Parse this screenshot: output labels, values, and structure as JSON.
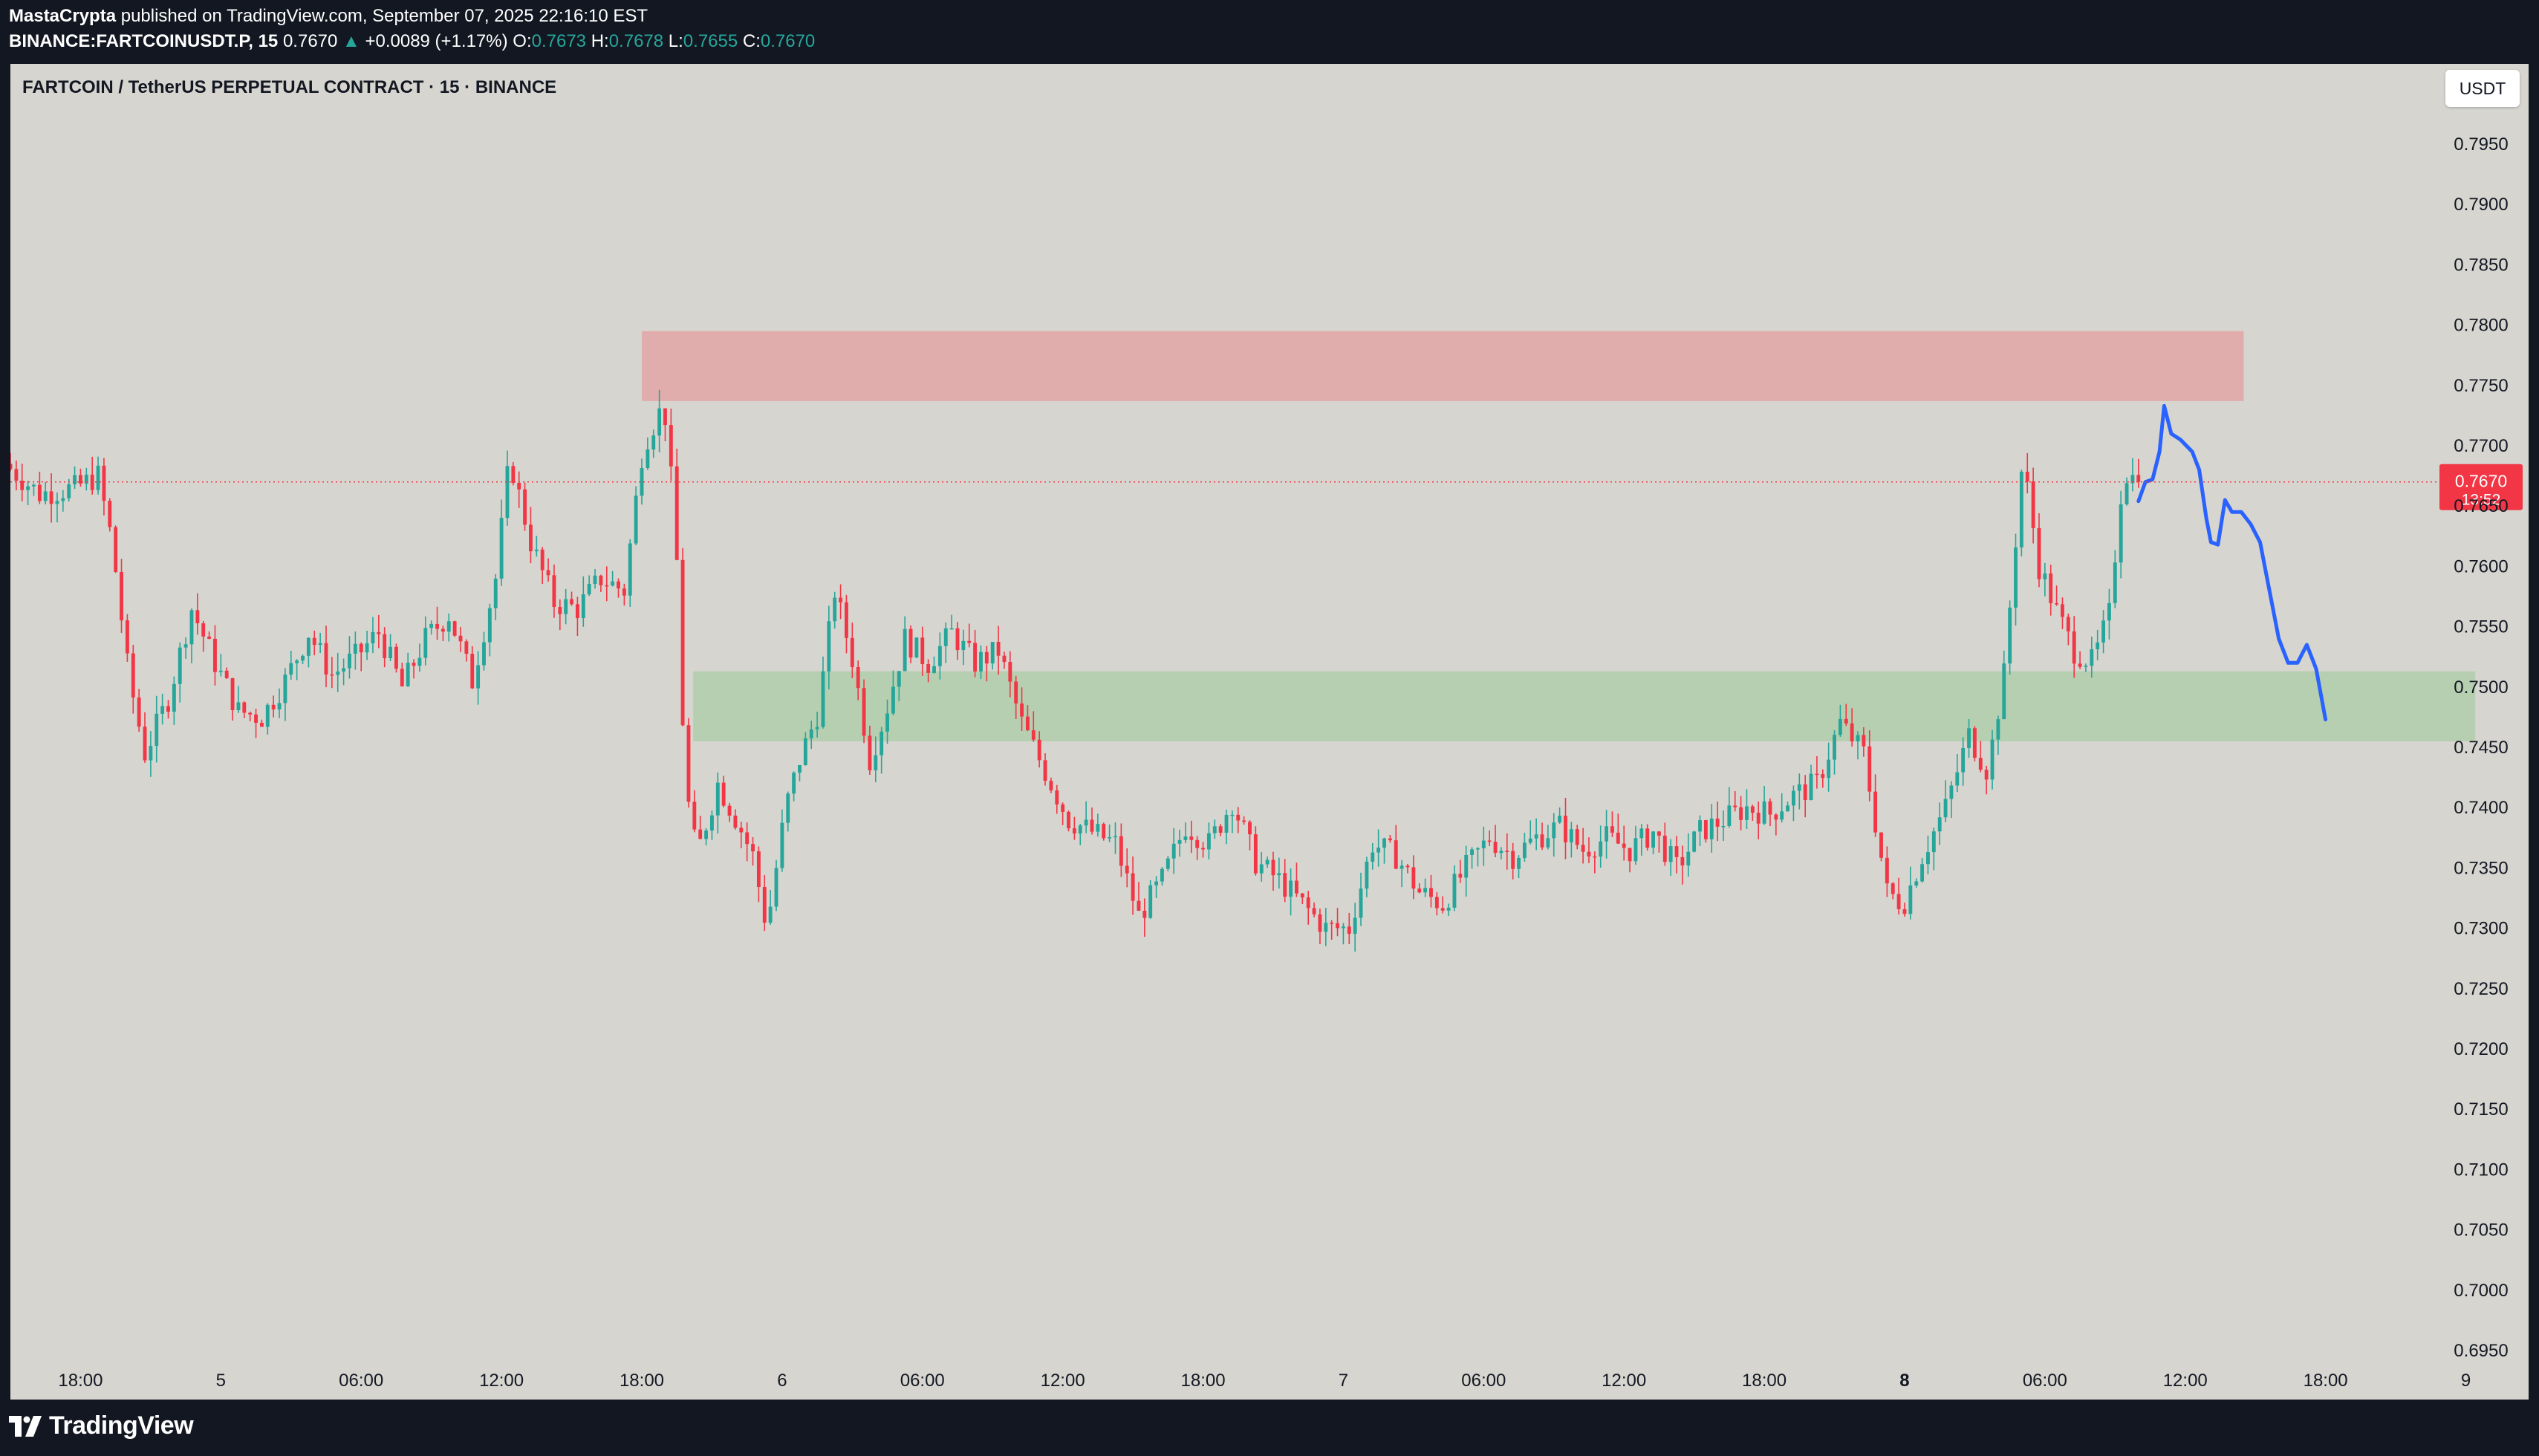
{
  "header": {
    "author": "MastaCrypta",
    "published_text": "published on TradingView.com, September 07, 2025 22:16:10 EST",
    "symbol_interval": "BINANCE:FARTCOINUSDT.P, 15",
    "last": "0.7670",
    "change": "+0.0089 (+1.17%)",
    "o_label": "O:",
    "o_value": "0.7673",
    "h_label": "H:",
    "h_value": "0.7678",
    "l_label": "L:",
    "l_value": "0.7655",
    "c_label": "C:",
    "c_value": "0.7670"
  },
  "chart_title": "FARTCOIN / TetherUS PERPETUAL CONTRACT · 15 · BINANCE",
  "currency_button": "USDT",
  "footer": {
    "brand": "TradingView"
  },
  "colors": {
    "up": "#26a69a",
    "down": "#f23645",
    "background": "#d6d5cf",
    "frame": "#131722",
    "resistance_zone": "#e1acac",
    "support_zone": "#b6cfb0",
    "projection": "#2962ff",
    "price_badge": "#f23645"
  },
  "chart_data": {
    "type": "candlestick",
    "title": "FARTCOIN / TetherUS PERPETUAL CONTRACT · 15 · BINANCE",
    "interval": "15",
    "y_ticks": [
      "0.7950",
      "0.7900",
      "0.7850",
      "0.7800",
      "0.7750",
      "0.7700",
      "0.7650",
      "0.7600",
      "0.7550",
      "0.7500",
      "0.7450",
      "0.7400",
      "0.7350",
      "0.7300",
      "0.7250",
      "0.7200",
      "0.7150",
      "0.7100",
      "0.7050",
      "0.7000",
      "0.6950"
    ],
    "ylim": [
      0.6925,
      0.798
    ],
    "x_range_hours": [
      -3,
      103
    ],
    "x_ticks": [
      {
        "h": 0,
        "label": "18:00",
        "bold": false
      },
      {
        "h": 6,
        "label": "5",
        "bold": false
      },
      {
        "h": 12,
        "label": "06:00",
        "bold": false
      },
      {
        "h": 18,
        "label": "12:00",
        "bold": false
      },
      {
        "h": 24,
        "label": "18:00",
        "bold": false
      },
      {
        "h": 30,
        "label": "6",
        "bold": false
      },
      {
        "h": 36,
        "label": "06:00",
        "bold": false
      },
      {
        "h": 42,
        "label": "12:00",
        "bold": false
      },
      {
        "h": 48,
        "label": "18:00",
        "bold": false
      },
      {
        "h": 54,
        "label": "7",
        "bold": false
      },
      {
        "h": 60,
        "label": "06:00",
        "bold": false
      },
      {
        "h": 66,
        "label": "12:00",
        "bold": false
      },
      {
        "h": 72,
        "label": "18:00",
        "bold": false
      },
      {
        "h": 78,
        "label": "8",
        "bold": true
      },
      {
        "h": 84,
        "label": "06:00",
        "bold": false
      },
      {
        "h": 90,
        "label": "12:00",
        "bold": false
      },
      {
        "h": 96,
        "label": "18:00",
        "bold": false
      },
      {
        "h": 102,
        "label": "9",
        "bold": false
      }
    ],
    "price_path": [
      [
        -3.0,
        0.7685
      ],
      [
        -1.5,
        0.766
      ],
      [
        0.0,
        0.7665
      ],
      [
        1.0,
        0.7675
      ],
      [
        1.6,
        0.762
      ],
      [
        2.3,
        0.751
      ],
      [
        3.0,
        0.7445
      ],
      [
        4.0,
        0.749
      ],
      [
        5.0,
        0.7565
      ],
      [
        6.0,
        0.752
      ],
      [
        7.0,
        0.748
      ],
      [
        8.0,
        0.7475
      ],
      [
        9.0,
        0.7505
      ],
      [
        10.0,
        0.7545
      ],
      [
        11.0,
        0.751
      ],
      [
        12.0,
        0.7525
      ],
      [
        13.0,
        0.7545
      ],
      [
        14.0,
        0.75
      ],
      [
        15.0,
        0.754
      ],
      [
        16.0,
        0.756
      ],
      [
        17.0,
        0.7505
      ],
      [
        18.0,
        0.759
      ],
      [
        18.6,
        0.769
      ],
      [
        19.5,
        0.762
      ],
      [
        20.5,
        0.757
      ],
      [
        21.5,
        0.7565
      ],
      [
        22.5,
        0.759
      ],
      [
        23.5,
        0.758
      ],
      [
        24.3,
        0.77
      ],
      [
        25.2,
        0.7735
      ],
      [
        25.7,
        0.763
      ],
      [
        26.1,
        0.742
      ],
      [
        26.6,
        0.736
      ],
      [
        27.5,
        0.742
      ],
      [
        28.3,
        0.739
      ],
      [
        29.0,
        0.736
      ],
      [
        29.6,
        0.73
      ],
      [
        30.4,
        0.74
      ],
      [
        31.0,
        0.744
      ],
      [
        31.8,
        0.748
      ],
      [
        32.5,
        0.758
      ],
      [
        33.3,
        0.752
      ],
      [
        34.0,
        0.744
      ],
      [
        34.7,
        0.748
      ],
      [
        35.5,
        0.754
      ],
      [
        36.5,
        0.752
      ],
      [
        37.5,
        0.7545
      ],
      [
        38.5,
        0.752
      ],
      [
        39.5,
        0.753
      ],
      [
        40.5,
        0.747
      ],
      [
        41.5,
        0.743
      ],
      [
        42.5,
        0.739
      ],
      [
        43.5,
        0.738
      ],
      [
        44.5,
        0.737
      ],
      [
        45.5,
        0.731
      ],
      [
        46.5,
        0.734
      ],
      [
        47.5,
        0.7385
      ],
      [
        48.5,
        0.737
      ],
      [
        49.5,
        0.7405
      ],
      [
        50.5,
        0.7355
      ],
      [
        51.5,
        0.734
      ],
      [
        52.5,
        0.732
      ],
      [
        53.5,
        0.73
      ],
      [
        54.5,
        0.73
      ],
      [
        55.5,
        0.737
      ],
      [
        56.5,
        0.736
      ],
      [
        57.5,
        0.733
      ],
      [
        58.5,
        0.732
      ],
      [
        59.5,
        0.735
      ],
      [
        60.5,
        0.7375
      ],
      [
        61.5,
        0.736
      ],
      [
        62.5,
        0.7375
      ],
      [
        63.5,
        0.7385
      ],
      [
        64.5,
        0.7365
      ],
      [
        65.5,
        0.7375
      ],
      [
        66.5,
        0.7365
      ],
      [
        67.5,
        0.738
      ],
      [
        68.5,
        0.735
      ],
      [
        69.5,
        0.738
      ],
      [
        70.5,
        0.739
      ],
      [
        71.5,
        0.74
      ],
      [
        72.5,
        0.7395
      ],
      [
        73.5,
        0.741
      ],
      [
        74.5,
        0.742
      ],
      [
        75.5,
        0.747
      ],
      [
        76.5,
        0.7445
      ],
      [
        77.5,
        0.733
      ],
      [
        78.2,
        0.732
      ],
      [
        79.0,
        0.736
      ],
      [
        80.0,
        0.74
      ],
      [
        81.0,
        0.746
      ],
      [
        81.8,
        0.743
      ],
      [
        82.5,
        0.751
      ],
      [
        83.3,
        0.769
      ],
      [
        84.0,
        0.76
      ],
      [
        84.8,
        0.756
      ],
      [
        85.5,
        0.753
      ],
      [
        86.3,
        0.752
      ],
      [
        87.0,
        0.756
      ],
      [
        87.6,
        0.768
      ],
      [
        88.2,
        0.767
      ]
    ],
    "resistance_zone": {
      "y_top": 0.7795,
      "y_bottom": 0.7737,
      "x_start": 24.0,
      "x_end": 92.5
    },
    "support_zone": {
      "y_top": 0.7513,
      "y_bottom": 0.7455,
      "x_start": 26.2,
      "x_end": 102.4
    },
    "projection_path": [
      [
        88.0,
        0.7654
      ],
      [
        88.3,
        0.767
      ],
      [
        88.6,
        0.7672
      ],
      [
        88.9,
        0.7695
      ],
      [
        89.1,
        0.7733
      ],
      [
        89.4,
        0.771
      ],
      [
        89.8,
        0.7705
      ],
      [
        90.3,
        0.7695
      ],
      [
        90.6,
        0.768
      ],
      [
        90.9,
        0.764
      ],
      [
        91.1,
        0.762
      ],
      [
        91.4,
        0.7618
      ],
      [
        91.7,
        0.7655
      ],
      [
        92.0,
        0.7645
      ],
      [
        92.4,
        0.7645
      ],
      [
        92.8,
        0.7635
      ],
      [
        93.2,
        0.762
      ],
      [
        93.6,
        0.758
      ],
      [
        94.0,
        0.754
      ],
      [
        94.4,
        0.752
      ],
      [
        94.8,
        0.752
      ],
      [
        95.2,
        0.7535
      ],
      [
        95.6,
        0.7515
      ],
      [
        96.0,
        0.7473
      ]
    ],
    "current_price": {
      "value": 0.767,
      "label": "0.7670",
      "countdown": "13:52"
    }
  }
}
